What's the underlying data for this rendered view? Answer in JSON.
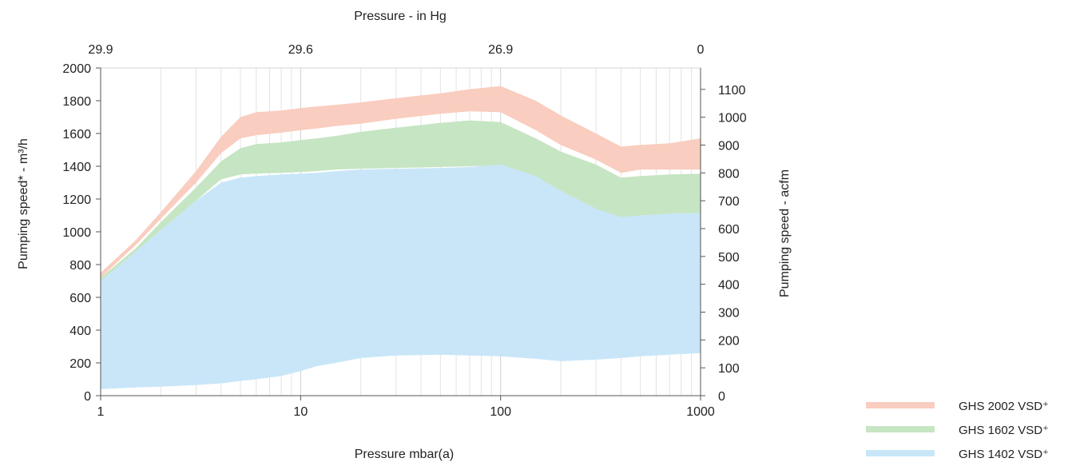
{
  "chart_data": {
    "type": "area",
    "title": "",
    "xlabel": "Pressure mbar(a)",
    "x_scale": "log",
    "xlim": [
      1,
      1000
    ],
    "x_ticks": [
      "1",
      "10",
      "100",
      "1000"
    ],
    "ylabel_left": "Pumping speed* - m³/h",
    "ylim_left": [
      0,
      2000
    ],
    "y_ticks_left": [
      "0",
      "200",
      "400",
      "600",
      "800",
      "1000",
      "1200",
      "1400",
      "1600",
      "1800",
      "2000"
    ],
    "ylabel_right": "Pumping speed - acfm",
    "ylim_right": [
      0,
      1177
    ],
    "y_ticks_right": [
      "0",
      "100",
      "200",
      "300",
      "400",
      "500",
      "600",
      "700",
      "800",
      "900",
      "1000",
      "1100"
    ],
    "x2label": "Pressure - in Hg",
    "x2_ticks": [
      {
        "label": "29.9",
        "at_mbar": 1
      },
      {
        "label": "29.6",
        "at_mbar": 10
      },
      {
        "label": "26.9",
        "at_mbar": 100
      },
      {
        "label": "0",
        "at_mbar": 1000
      }
    ],
    "grid": true,
    "legend_position": "bottom-right",
    "pressure_mbar": [
      1,
      1.5,
      2,
      3,
      4,
      5,
      6,
      8,
      10,
      12,
      15,
      20,
      30,
      50,
      70,
      100,
      150,
      200,
      300,
      400,
      500,
      700,
      1000
    ],
    "series": [
      {
        "name": "GHS 2002 VSD⁺",
        "color": "#f9cdbf",
        "upper": [
          750,
          950,
          1120,
          1370,
          1580,
          1700,
          1730,
          1740,
          1755,
          1765,
          1775,
          1790,
          1815,
          1845,
          1870,
          1890,
          1800,
          1710,
          1600,
          1520,
          1530,
          1540,
          1570
        ],
        "lower": [
          720,
          920,
          1080,
          1300,
          1480,
          1570,
          1590,
          1605,
          1620,
          1630,
          1645,
          1660,
          1690,
          1720,
          1735,
          1730,
          1620,
          1530,
          1440,
          1360,
          1380,
          1380,
          1380
        ]
      },
      {
        "name": "GHS 1602 VSD⁺",
        "color": "#c6e5c3",
        "upper": [
          720,
          900,
          1060,
          1270,
          1430,
          1510,
          1535,
          1545,
          1560,
          1570,
          1585,
          1610,
          1635,
          1665,
          1680,
          1670,
          1570,
          1490,
          1410,
          1330,
          1340,
          1350,
          1355
        ],
        "lower": [
          700,
          880,
          1010,
          1190,
          1320,
          1350,
          1355,
          1360,
          1365,
          1370,
          1380,
          1385,
          1390,
          1395,
          1400,
          1405,
          1320,
          1250,
          1140,
          1080,
          1100,
          1110,
          1115
        ]
      },
      {
        "name": "GHS 1402 VSD⁺",
        "color": "#c8e6f8",
        "upper": [
          700,
          880,
          1010,
          1190,
          1300,
          1330,
          1340,
          1350,
          1355,
          1360,
          1370,
          1380,
          1385,
          1390,
          1395,
          1410,
          1340,
          1250,
          1140,
          1090,
          1100,
          1110,
          1115
        ],
        "lower": [
          40,
          50,
          55,
          65,
          75,
          90,
          100,
          120,
          150,
          180,
          200,
          230,
          245,
          250,
          245,
          240,
          225,
          210,
          220,
          230,
          240,
          250,
          260
        ]
      }
    ]
  }
}
